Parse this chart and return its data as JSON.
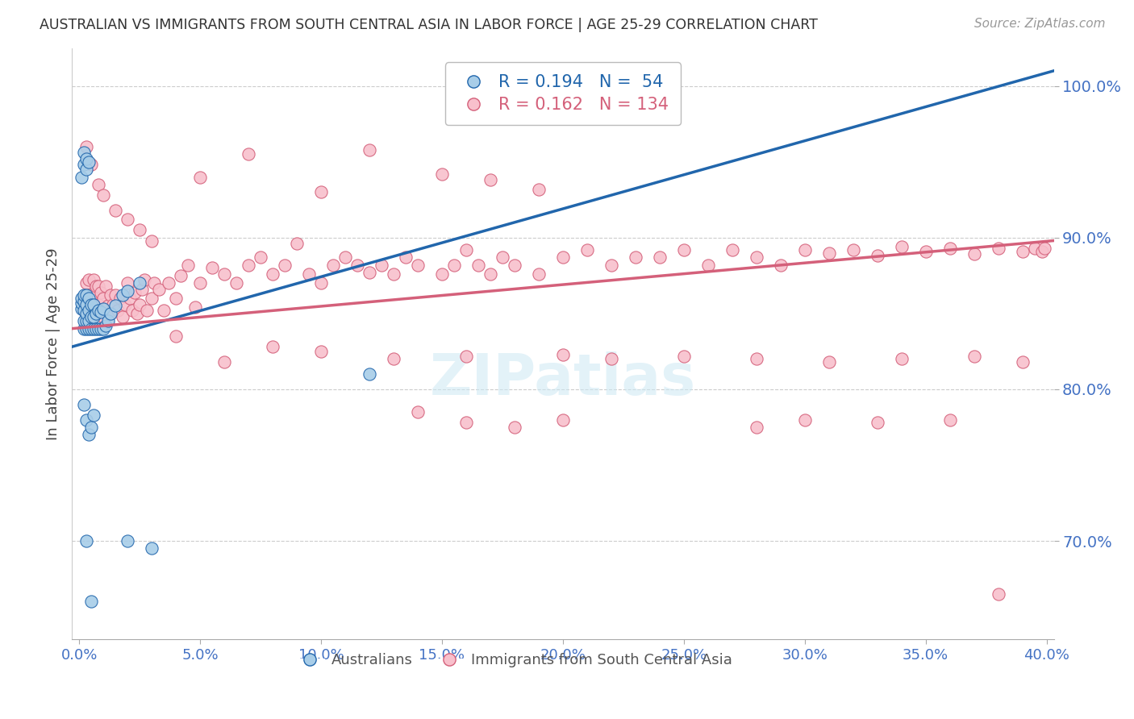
{
  "title": "AUSTRALIAN VS IMMIGRANTS FROM SOUTH CENTRAL ASIA IN LABOR FORCE | AGE 25-29 CORRELATION CHART",
  "source": "Source: ZipAtlas.com",
  "ylabel": "In Labor Force | Age 25-29",
  "xlim": [
    -0.003,
    0.403
  ],
  "ylim": [
    0.635,
    1.025
  ],
  "yticks": [
    0.7,
    0.8,
    0.9,
    1.0
  ],
  "ytick_labels": [
    "70.0%",
    "80.0%",
    "90.0%",
    "100.0%"
  ],
  "xticks": [
    0.0,
    0.05,
    0.1,
    0.15,
    0.2,
    0.25,
    0.3,
    0.35,
    0.4
  ],
  "xtick_labels": [
    "0.0%",
    "5.0%",
    "10.0%",
    "15.0%",
    "20.0%",
    "25.0%",
    "30.0%",
    "35.0%",
    "40.0%"
  ],
  "blue_color": "#a8cde8",
  "blue_color_dark": "#2166ac",
  "pink_color": "#f8c0cc",
  "pink_color_dark": "#d4607a",
  "blue_R": 0.194,
  "blue_N": 54,
  "pink_R": 0.162,
  "pink_N": 134,
  "blue_trend_x": [
    -0.003,
    0.403
  ],
  "blue_trend_y": [
    0.828,
    1.01
  ],
  "pink_trend_x": [
    -0.003,
    0.403
  ],
  "pink_trend_y": [
    0.84,
    0.898
  ],
  "watermark": "ZIPatlas",
  "title_color": "#333333",
  "axis_color": "#4472C4",
  "blue_scatter_x": [
    0.001,
    0.001,
    0.001,
    0.002,
    0.002,
    0.002,
    0.002,
    0.002,
    0.003,
    0.003,
    0.003,
    0.003,
    0.003,
    0.004,
    0.004,
    0.004,
    0.004,
    0.005,
    0.005,
    0.005,
    0.006,
    0.006,
    0.006,
    0.007,
    0.007,
    0.008,
    0.008,
    0.009,
    0.009,
    0.01,
    0.01,
    0.011,
    0.012,
    0.013,
    0.015,
    0.018,
    0.02,
    0.025,
    0.001,
    0.002,
    0.002,
    0.003,
    0.003,
    0.004,
    0.003,
    0.005,
    0.02,
    0.12,
    0.002,
    0.003,
    0.004,
    0.005,
    0.006,
    0.03
  ],
  "blue_scatter_y": [
    0.853,
    0.857,
    0.86,
    0.84,
    0.845,
    0.852,
    0.858,
    0.862,
    0.84,
    0.845,
    0.85,
    0.856,
    0.862,
    0.84,
    0.845,
    0.852,
    0.86,
    0.84,
    0.848,
    0.856,
    0.84,
    0.848,
    0.856,
    0.84,
    0.85,
    0.84,
    0.852,
    0.84,
    0.851,
    0.84,
    0.853,
    0.842,
    0.845,
    0.85,
    0.855,
    0.862,
    0.865,
    0.87,
    0.94,
    0.948,
    0.956,
    0.945,
    0.952,
    0.95,
    0.7,
    0.66,
    0.7,
    0.81,
    0.79,
    0.78,
    0.77,
    0.775,
    0.783,
    0.695
  ],
  "pink_scatter_x": [
    0.002,
    0.003,
    0.003,
    0.004,
    0.004,
    0.005,
    0.005,
    0.006,
    0.006,
    0.007,
    0.007,
    0.008,
    0.008,
    0.009,
    0.009,
    0.01,
    0.01,
    0.011,
    0.011,
    0.012,
    0.013,
    0.013,
    0.014,
    0.015,
    0.016,
    0.017,
    0.018,
    0.019,
    0.02,
    0.021,
    0.022,
    0.023,
    0.024,
    0.025,
    0.026,
    0.027,
    0.028,
    0.03,
    0.031,
    0.033,
    0.035,
    0.037,
    0.04,
    0.042,
    0.045,
    0.048,
    0.05,
    0.055,
    0.06,
    0.065,
    0.07,
    0.075,
    0.08,
    0.085,
    0.09,
    0.095,
    0.1,
    0.105,
    0.11,
    0.115,
    0.12,
    0.125,
    0.13,
    0.135,
    0.14,
    0.15,
    0.155,
    0.16,
    0.165,
    0.17,
    0.175,
    0.18,
    0.19,
    0.2,
    0.21,
    0.22,
    0.23,
    0.24,
    0.25,
    0.26,
    0.27,
    0.28,
    0.29,
    0.3,
    0.31,
    0.32,
    0.33,
    0.34,
    0.35,
    0.36,
    0.37,
    0.38,
    0.39,
    0.395,
    0.398,
    0.399,
    0.003,
    0.005,
    0.008,
    0.01,
    0.015,
    0.02,
    0.025,
    0.03,
    0.04,
    0.06,
    0.08,
    0.1,
    0.13,
    0.16,
    0.2,
    0.22,
    0.25,
    0.28,
    0.31,
    0.34,
    0.37,
    0.39,
    0.14,
    0.16,
    0.18,
    0.2,
    0.28,
    0.3,
    0.33,
    0.36,
    0.38,
    0.05,
    0.07,
    0.1,
    0.12,
    0.15,
    0.17,
    0.19
  ],
  "pink_scatter_y": [
    0.852,
    0.87,
    0.862,
    0.858,
    0.872,
    0.848,
    0.862,
    0.856,
    0.872,
    0.852,
    0.868,
    0.856,
    0.868,
    0.852,
    0.864,
    0.848,
    0.86,
    0.852,
    0.868,
    0.855,
    0.85,
    0.862,
    0.856,
    0.862,
    0.852,
    0.86,
    0.848,
    0.856,
    0.87,
    0.86,
    0.852,
    0.864,
    0.85,
    0.856,
    0.866,
    0.872,
    0.852,
    0.86,
    0.87,
    0.866,
    0.852,
    0.87,
    0.86,
    0.875,
    0.882,
    0.854,
    0.87,
    0.88,
    0.876,
    0.87,
    0.882,
    0.887,
    0.876,
    0.882,
    0.896,
    0.876,
    0.87,
    0.882,
    0.887,
    0.882,
    0.877,
    0.882,
    0.876,
    0.887,
    0.882,
    0.876,
    0.882,
    0.892,
    0.882,
    0.876,
    0.887,
    0.882,
    0.876,
    0.887,
    0.892,
    0.882,
    0.887,
    0.887,
    0.892,
    0.882,
    0.892,
    0.887,
    0.882,
    0.892,
    0.89,
    0.892,
    0.888,
    0.894,
    0.891,
    0.893,
    0.889,
    0.893,
    0.891,
    0.893,
    0.891,
    0.893,
    0.96,
    0.948,
    0.935,
    0.928,
    0.918,
    0.912,
    0.905,
    0.898,
    0.835,
    0.818,
    0.828,
    0.825,
    0.82,
    0.822,
    0.823,
    0.82,
    0.822,
    0.82,
    0.818,
    0.82,
    0.822,
    0.818,
    0.785,
    0.778,
    0.775,
    0.78,
    0.775,
    0.78,
    0.778,
    0.78,
    0.665,
    0.94,
    0.955,
    0.93,
    0.958,
    0.942,
    0.938,
    0.932
  ]
}
